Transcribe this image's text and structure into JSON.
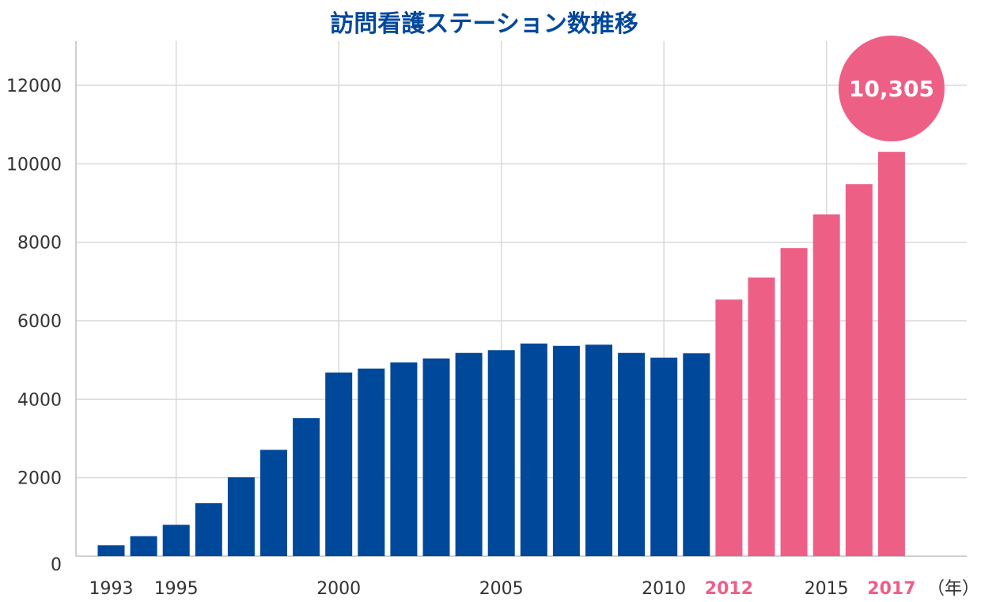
{
  "chart_data": {
    "type": "bar",
    "title": "訪問看護ステーション数推移",
    "x_unit": "（年）",
    "ylim": [
      0,
      13000
    ],
    "yticks": [
      0,
      2000,
      4000,
      6000,
      8000,
      10000,
      12000
    ],
    "x": [
      1993,
      1994,
      1995,
      1996,
      1997,
      1998,
      1999,
      2000,
      2001,
      2002,
      2003,
      2004,
      2005,
      2006,
      2007,
      2008,
      2009,
      2010,
      2011,
      2012,
      2013,
      2014,
      2015,
      2016,
      2017
    ],
    "values": [
      277,
      510,
      800,
      1350,
      2010,
      2710,
      3520,
      4680,
      4780,
      4940,
      5040,
      5180,
      5250,
      5420,
      5360,
      5390,
      5180,
      5060,
      5170,
      6540,
      7100,
      7850,
      8710,
      9480,
      10305
    ],
    "x_tick_labels": [
      {
        "label": "1993",
        "highlight": false
      },
      {
        "label": "1995",
        "highlight": false
      },
      {
        "label": "2000",
        "highlight": false
      },
      {
        "label": "2005",
        "highlight": false
      },
      {
        "label": "2010",
        "highlight": false
      },
      {
        "label": "2012",
        "highlight": true
      },
      {
        "label": "2015",
        "highlight": false
      },
      {
        "label": "2017",
        "highlight": true
      }
    ],
    "highlight_from": 2012,
    "annotation": {
      "year": 2017,
      "text": "10,305"
    },
    "colors": {
      "base": "#00489a",
      "highlight": "#ee5f86",
      "grid": "#d9d9d9",
      "title": "#00489a"
    },
    "grid": true,
    "legend": "none"
  }
}
